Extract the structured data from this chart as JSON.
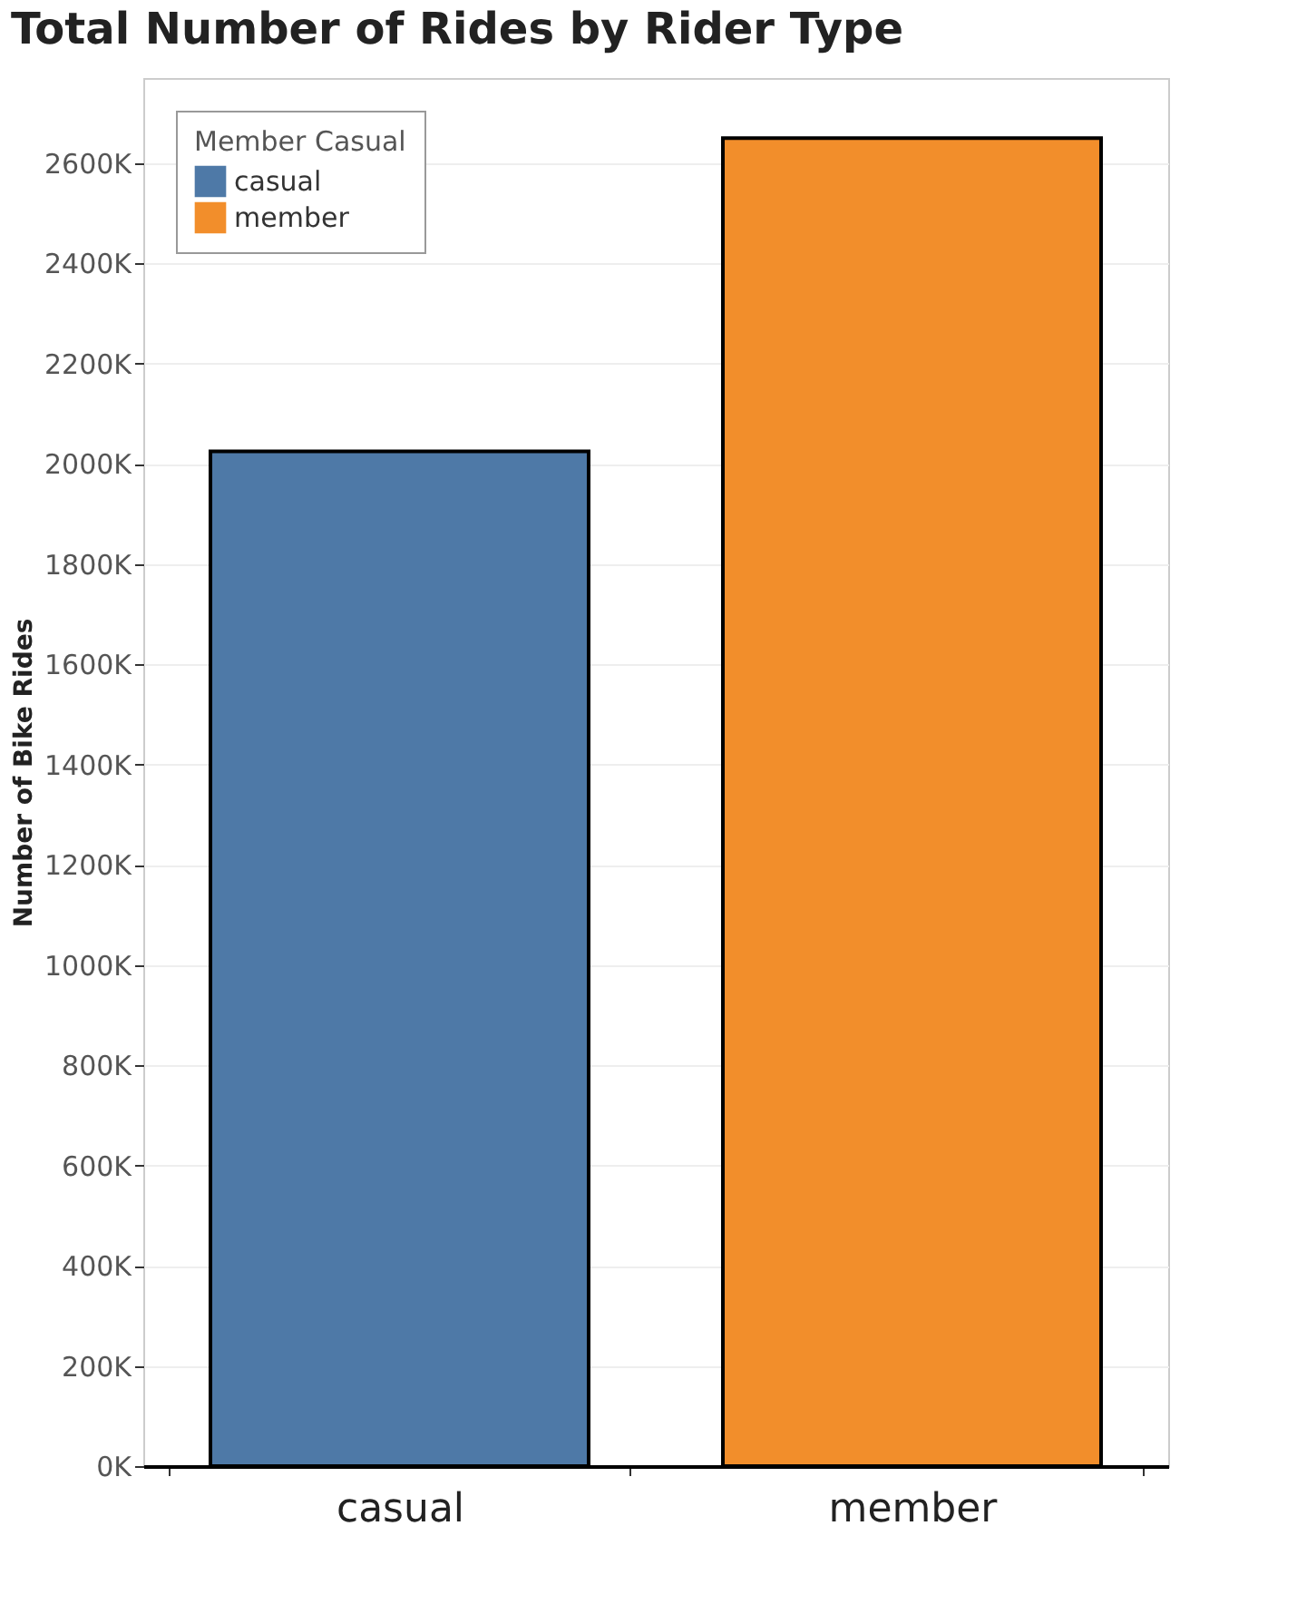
{
  "chart_data": {
    "type": "bar",
    "title": "Total Number of Rides by Rider Type",
    "ylabel": "Number of Bike Rides",
    "legend_title": "Member Casual",
    "categories": [
      "casual",
      "member"
    ],
    "series": [
      {
        "name": "casual",
        "color": "#4e79a7",
        "values": [
          2025000,
          null
        ]
      },
      {
        "name": "member",
        "color": "#f28e2b",
        "values": [
          null,
          2650000
        ]
      }
    ],
    "ylim": [
      0,
      2770000
    ],
    "yticks": [
      {
        "value": 0,
        "label": "0K"
      },
      {
        "value": 200000,
        "label": "200K"
      },
      {
        "value": 400000,
        "label": "400K"
      },
      {
        "value": 600000,
        "label": "600K"
      },
      {
        "value": 800000,
        "label": "800K"
      },
      {
        "value": 1000000,
        "label": "1000K"
      },
      {
        "value": 1200000,
        "label": "1200K"
      },
      {
        "value": 1400000,
        "label": "1400K"
      },
      {
        "value": 1600000,
        "label": "1600K"
      },
      {
        "value": 1800000,
        "label": "1800K"
      },
      {
        "value": 2000000,
        "label": "2000K"
      },
      {
        "value": 2200000,
        "label": "2200K"
      },
      {
        "value": 2400000,
        "label": "2400K"
      },
      {
        "value": 2600000,
        "label": "2600K"
      }
    ],
    "grid": "y",
    "legend": "top left"
  }
}
